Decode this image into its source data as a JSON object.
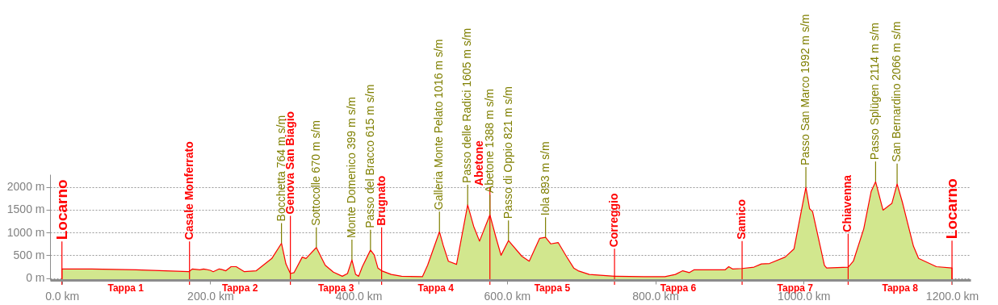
{
  "chart_data": {
    "type": "area",
    "xlim": [
      -16,
      1225
    ],
    "ylim": [
      -42,
      2276
    ],
    "xticks": [
      {
        "value": 0,
        "label": "0.0 km"
      },
      {
        "value": 200,
        "label": "200.0 km"
      },
      {
        "value": 400,
        "label": "400.0 km"
      },
      {
        "value": 600,
        "label": "600.0 km"
      },
      {
        "value": 800,
        "label": "800.0 km"
      },
      {
        "value": 1000,
        "label": "1000.0 km"
      },
      {
        "value": 1200,
        "label": "1200.0 km"
      }
    ],
    "yticks": [
      {
        "value": 0,
        "label": "0 m"
      },
      {
        "value": 500,
        "label": "500 m"
      },
      {
        "value": 1000,
        "label": "1000 m"
      },
      {
        "value": 1500,
        "label": "1500 m"
      },
      {
        "value": 2000,
        "label": "2000 m"
      }
    ],
    "grid": "y",
    "x": [
      0,
      40,
      100,
      171,
      176,
      186,
      191,
      200,
      204,
      212,
      215,
      221,
      228,
      235,
      246,
      262,
      283,
      296,
      302,
      308,
      313,
      324,
      329,
      343,
      355,
      366,
      378,
      385,
      391,
      396,
      400,
      405,
      416,
      421,
      426,
      431,
      444,
      458,
      486,
      493,
      509,
      514,
      521,
      532,
      547,
      555,
      563,
      577,
      585,
      592,
      602,
      620,
      630,
      644,
      652,
      659,
      669,
      680,
      690,
      696,
      711,
      745,
      785,
      813,
      827,
      837,
      846,
      852,
      894,
      899,
      904,
      917,
      933,
      943,
      954,
      975,
      987,
      1003,
      1008,
      1012,
      1028,
      1031,
      1060,
      1067,
      1081,
      1091,
      1097,
      1107,
      1119,
      1126,
      1133,
      1148,
      1155,
      1179,
      1200
    ],
    "series": [
      {
        "color": "#d2e78e",
        "values": [
          200,
          200,
          180,
          140,
          200,
          180,
          200,
          170,
          140,
          200,
          190,
          160,
          250,
          250,
          140,
          160,
          430,
          764,
          310,
          100,
          120,
          460,
          430,
          670,
          280,
          130,
          40,
          100,
          399,
          80,
          40,
          250,
          615,
          510,
          220,
          160,
          80,
          40,
          30,
          280,
          1016,
          720,
          370,
          300,
          1605,
          1140,
          810,
          1388,
          900,
          500,
          821,
          480,
          370,
          870,
          893,
          750,
          780,
          480,
          220,
          160,
          80,
          40,
          30,
          30,
          80,
          160,
          120,
          180,
          180,
          250,
          200,
          210,
          240,
          310,
          320,
          460,
          640,
          1992,
          1520,
          1460,
          280,
          220,
          240,
          370,
          1080,
          1900,
          2114,
          1490,
          1640,
          2066,
          1670,
          700,
          430,
          250,
          220
        ]
      }
    ],
    "ref_lines": [
      {
        "axis": "x",
        "value": 0,
        "label": "Locarno",
        "color": "#ff0000"
      },
      {
        "axis": "x",
        "value": 172,
        "label": "Casale Monferrato",
        "color": "#ff0000"
      },
      {
        "axis": "x",
        "value": 308,
        "label": "Genova San Biagio",
        "color": "#ff0000"
      },
      {
        "axis": "x",
        "value": 431,
        "label": "Brugnato",
        "color": "#ff0000"
      },
      {
        "axis": "x",
        "value": 577,
        "label": "Abetone",
        "color": "#ff0000"
      },
      {
        "axis": "x",
        "value": 745,
        "label": "Correggio",
        "color": "#ff0000"
      },
      {
        "axis": "x",
        "value": 917,
        "label": "Samico",
        "color": "#ff0000"
      },
      {
        "axis": "x",
        "value": 1060,
        "label": "Chiavenna",
        "color": "#ff0000"
      },
      {
        "axis": "x",
        "value": 1200,
        "label": "Locarno",
        "color": "#ff0000"
      }
    ],
    "annotations": [
      {
        "text": "Bocchetta 764 m s/m",
        "x": 296,
        "y": 764
      },
      {
        "text": "Sottocolle 670 m s/m",
        "x": 343,
        "y": 670
      },
      {
        "text": "Monte Domenico 399 m s/m",
        "x": 391,
        "y": 399
      },
      {
        "text": "Passo del Bracco 615 m s/m",
        "x": 416,
        "y": 615
      },
      {
        "text": "Galleria Monte Pelato 1016 m s/m",
        "x": 509,
        "y": 1016
      },
      {
        "text": "Passo delle Radici 1605 m s/m",
        "x": 547,
        "y": 1605
      },
      {
        "text": "Abetone 1388 m s/m",
        "x": 577,
        "y": 1388
      },
      {
        "text": "Passo di Oppio 821 m s/m",
        "x": 602,
        "y": 821
      },
      {
        "text": "Iola 893 m s/m",
        "x": 652,
        "y": 893
      },
      {
        "text": "Passo San Marco 1992 m s/m",
        "x": 1003,
        "y": 1992
      },
      {
        "text": "Passo Splügen 2114 m s/m",
        "x": 1097,
        "y": 2114
      },
      {
        "text": "San Bernardino 2066 m s/m",
        "x": 1126,
        "y": 2066
      },
      "Tappa 1",
      "Tappa 2",
      "Tappa 3",
      "Tappa 4",
      "Tappa 5",
      "Tappa 6",
      "Tappa 7",
      "Tappa 8"
    ]
  }
}
